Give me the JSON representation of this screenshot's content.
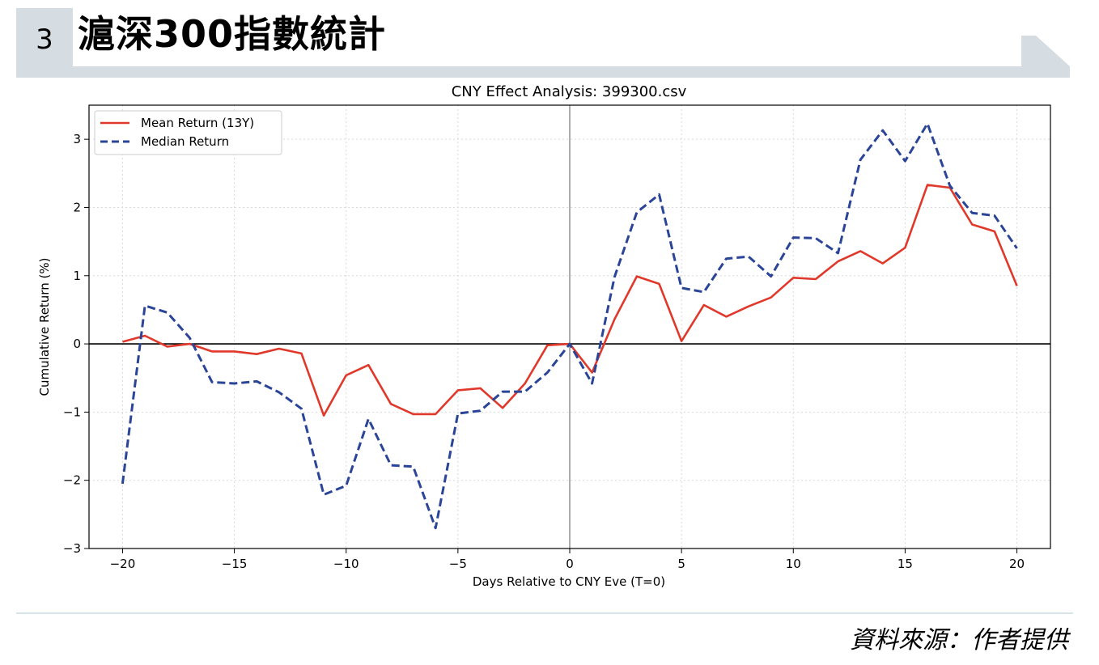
{
  "header": {
    "number": "3",
    "title": "滬深300指數統計"
  },
  "footer": {
    "source": "資料來源：作者提供"
  },
  "colors": {
    "band": "#d6dde2",
    "mean": "#e0392b",
    "median": "#2a4598"
  },
  "chart_data": {
    "type": "line",
    "title": "CNY Effect Analysis: 399300.csv",
    "xlabel": "Days Relative to CNY Eve (T=0)",
    "ylabel": "Cumulative Return (%)",
    "xlim": [
      -21.5,
      21.5
    ],
    "ylim": [
      -3,
      3.5
    ],
    "xticks": [
      -20,
      -15,
      -10,
      -5,
      0,
      5,
      10,
      15,
      20
    ],
    "xtick_labels": [
      "−20",
      "−15",
      "−10",
      "−5",
      "0",
      "5",
      "10",
      "15",
      "20"
    ],
    "yticks": [
      -3,
      -2,
      -1,
      0,
      1,
      2,
      3
    ],
    "ytick_labels": [
      "−3",
      "−2",
      "−1",
      "0",
      "1",
      "2",
      "3"
    ],
    "grid": true,
    "legend_position": "top-left",
    "x": [
      -20,
      -19,
      -18,
      -17,
      -16,
      -15,
      -14,
      -13,
      -12,
      -11,
      -10,
      -9,
      -8,
      -7,
      -6,
      -5,
      -4,
      -3,
      -2,
      -1,
      0,
      1,
      2,
      3,
      4,
      5,
      6,
      7,
      8,
      9,
      10,
      11,
      12,
      13,
      14,
      15,
      16,
      17,
      18,
      19,
      20
    ],
    "series": [
      {
        "name": "Mean Return (13Y)",
        "style": "solid",
        "values": [
          0.03,
          0.12,
          -0.04,
          0.0,
          -0.11,
          -0.11,
          -0.15,
          -0.07,
          -0.14,
          -1.05,
          -0.46,
          -0.31,
          -0.88,
          -1.03,
          -1.03,
          -0.68,
          -0.65,
          -0.94,
          -0.58,
          -0.02,
          0.0,
          -0.42,
          0.36,
          0.99,
          0.88,
          0.04,
          0.57,
          0.4,
          0.55,
          0.68,
          0.97,
          0.95,
          1.21,
          1.36,
          1.18,
          1.41,
          2.33,
          2.29,
          1.75,
          1.65,
          0.85
        ]
      },
      {
        "name": "Median Return",
        "style": "dashed",
        "values": [
          -2.05,
          0.56,
          0.46,
          0.09,
          -0.56,
          -0.58,
          -0.55,
          -0.71,
          -0.95,
          -2.21,
          -2.08,
          -1.1,
          -1.78,
          -1.8,
          -2.7,
          -1.02,
          -0.98,
          -0.7,
          -0.7,
          -0.42,
          0.0,
          -0.58,
          0.98,
          1.93,
          2.19,
          0.82,
          0.76,
          1.25,
          1.28,
          0.99,
          1.56,
          1.55,
          1.33,
          2.7,
          3.13,
          2.68,
          3.23,
          2.32,
          1.92,
          1.88,
          1.4
        ]
      }
    ]
  }
}
